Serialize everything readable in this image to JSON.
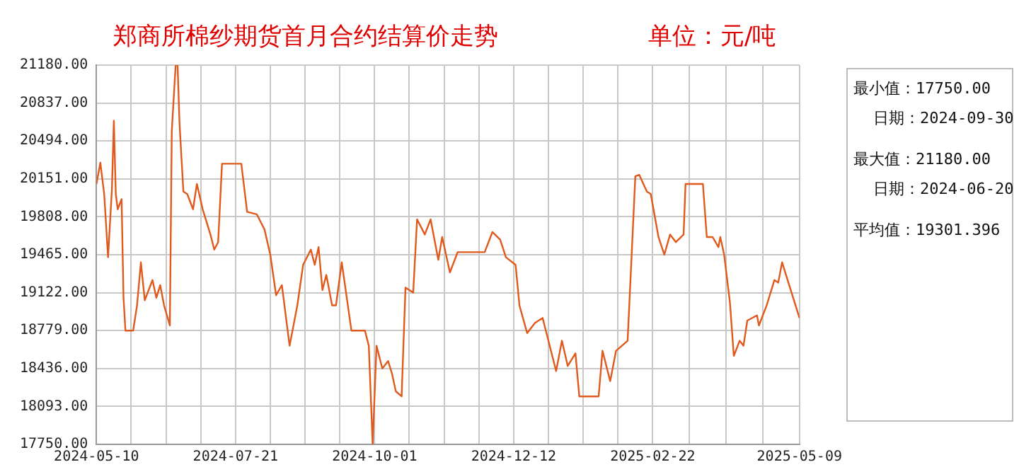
{
  "chart_data": {
    "type": "line",
    "title": "郑商所棉纱期货首月合约结算价走势",
    "subtitle": "单位：元/吨",
    "annotations": [
      "最小值：17750.00",
      "日期：2024-09-30",
      "最大值：21180.00",
      "日期：2024-06-20",
      "平均值：19301.396"
    ],
    "x": [
      "2024-05-10",
      "2024-05-12",
      "2024-05-14",
      "2024-05-16",
      "2024-05-18",
      "2024-05-19",
      "2024-05-20",
      "2024-05-21",
      "2024-05-23",
      "2024-05-24",
      "2024-05-25",
      "2024-05-29",
      "2024-05-31",
      "2024-06-02",
      "2024-06-04",
      "2024-06-08",
      "2024-06-10",
      "2024-06-12",
      "2024-06-14",
      "2024-06-17",
      "2024-06-18",
      "2024-06-20",
      "2024-06-21",
      "2024-06-22",
      "2024-06-24",
      "2024-06-26",
      "2024-06-29",
      "2024-07-01",
      "2024-07-04",
      "2024-07-08",
      "2024-07-10",
      "2024-07-12",
      "2024-07-14",
      "2024-07-24",
      "2024-07-27",
      "2024-08-01",
      "2024-08-05",
      "2024-08-08",
      "2024-08-11",
      "2024-08-14",
      "2024-08-18",
      "2024-08-22",
      "2024-08-25",
      "2024-08-29",
      "2024-08-31",
      "2024-09-02",
      "2024-09-04",
      "2024-09-06",
      "2024-09-09",
      "2024-09-11",
      "2024-09-14",
      "2024-09-19",
      "2024-09-26",
      "2024-09-28",
      "2024-09-30",
      "2024-10-02",
      "2024-10-05",
      "2024-10-08",
      "2024-10-10",
      "2024-10-12",
      "2024-10-15",
      "2024-10-17",
      "2024-10-21",
      "2024-10-23",
      "2024-10-27",
      "2024-10-30",
      "2024-11-03",
      "2024-11-05",
      "2024-11-09",
      "2024-11-13",
      "2024-11-27",
      "2024-12-01",
      "2024-12-05",
      "2024-12-08",
      "2024-12-13",
      "2024-12-15",
      "2024-12-19",
      "2024-12-23",
      "2024-12-27",
      "2024-12-30",
      "2025-01-03",
      "2025-01-06",
      "2025-01-09",
      "2025-01-13",
      "2025-01-15",
      "2025-01-25",
      "2025-01-27",
      "2025-01-31",
      "2025-02-03",
      "2025-02-09",
      "2025-02-10",
      "2025-02-13",
      "2025-02-15",
      "2025-02-19",
      "2025-02-21",
      "2025-02-25",
      "2025-02-28",
      "2025-03-03",
      "2025-03-06",
      "2025-03-10",
      "2025-03-11",
      "2025-03-20",
      "2025-03-22",
      "2025-03-25",
      "2025-03-28",
      "2025-03-29",
      "2025-03-31",
      "2025-04-03",
      "2025-04-05",
      "2025-04-08",
      "2025-04-10",
      "2025-04-12",
      "2025-04-17",
      "2025-04-18",
      "2025-04-22",
      "2025-04-26",
      "2025-04-28",
      "2025-04-30",
      "2025-05-09"
    ],
    "series": [
      {
        "color": "#e05a1e",
        "values": [
          20105,
          20297,
          20014,
          19442,
          20060,
          20677,
          20014,
          19876,
          19968,
          19076,
          18779,
          18779,
          19007,
          19396,
          19053,
          19236,
          19076,
          19190,
          19007,
          18825,
          20585,
          21180,
          21180,
          20654,
          20036,
          20014,
          19876,
          20105,
          19876,
          19648,
          19511,
          19579,
          20288,
          20288,
          19853,
          19831,
          19693,
          19465,
          19099,
          19190,
          18642,
          19007,
          19374,
          19511,
          19374,
          19534,
          19145,
          19282,
          19007,
          19007,
          19396,
          18779,
          18779,
          18642,
          17750,
          18642,
          18436,
          18504,
          18390,
          18230,
          18184,
          19168,
          19122,
          19785,
          19648,
          19785,
          19419,
          19625,
          19305,
          19488,
          19488,
          19670,
          19602,
          19442,
          19374,
          19007,
          18756,
          18848,
          18893,
          18687,
          18413,
          18687,
          18459,
          18573,
          18184,
          18184,
          18596,
          18322,
          18596,
          18687,
          19053,
          20174,
          20188,
          20036,
          20014,
          19625,
          19465,
          19648,
          19579,
          19648,
          20105,
          20105,
          19625,
          19625,
          19534,
          19625,
          19465,
          19031,
          18550,
          18687,
          18642,
          18870,
          18916,
          18825,
          19007,
          19236,
          19213,
          19396,
          18893
        ]
      }
    ],
    "xlim": [
      "2024-05-10",
      "2025-05-09"
    ],
    "xticks": [
      "2024-05-10",
      {
        "value": "2024-05-28",
        "label": null
      },
      {
        "value": "2024-06-15",
        "label": null
      },
      {
        "value": "2024-07-03",
        "label": null
      },
      "2024-07-21",
      {
        "value": "2024-08-08",
        "label": null
      },
      {
        "value": "2024-08-26",
        "label": null
      },
      {
        "value": "2024-09-13",
        "label": null
      },
      "2024-10-01",
      {
        "value": "2024-10-19",
        "label": null
      },
      {
        "value": "2024-11-06",
        "label": null
      },
      {
        "value": "2024-11-24",
        "label": null
      },
      "2024-12-12",
      {
        "value": "2024-12-30",
        "label": null
      },
      {
        "value": "2025-01-17",
        "label": null
      },
      {
        "value": "2025-02-04",
        "label": null
      },
      "2025-02-22",
      {
        "value": "2025-03-13",
        "label": null
      },
      {
        "value": "2025-04-01",
        "label": null
      },
      {
        "value": "2025-04-20",
        "label": null
      },
      "2025-05-09"
    ],
    "ylim": [
      17750,
      21180
    ],
    "yticks": [
      {
        "value": 17750,
        "label": "17750.00"
      },
      {
        "value": 18093,
        "label": "18093.00"
      },
      {
        "value": 18436,
        "label": "18436.00"
      },
      {
        "value": 18779,
        "label": "18779.00"
      },
      {
        "value": 19122,
        "label": "19122.00"
      },
      {
        "value": 19465,
        "label": "19465.00"
      },
      {
        "value": 19808,
        "label": "19808.00"
      },
      {
        "value": 20151,
        "label": "20151.00"
      },
      {
        "value": 20494,
        "label": "20494.00"
      },
      {
        "value": 20837,
        "label": "20837.00"
      },
      {
        "value": 21180,
        "label": "21180.00"
      }
    ],
    "grid": true,
    "legend": false,
    "marker": "none",
    "line_style": "solid"
  }
}
